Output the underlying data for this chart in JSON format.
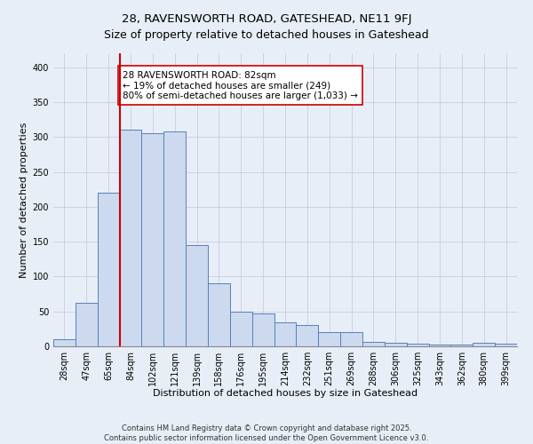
{
  "title1": "28, RAVENSWORTH ROAD, GATESHEAD, NE11 9FJ",
  "title2": "Size of property relative to detached houses in Gateshead",
  "xlabel": "Distribution of detached houses by size in Gateshead",
  "ylabel": "Number of detached properties",
  "categories": [
    "28sqm",
    "47sqm",
    "65sqm",
    "84sqm",
    "102sqm",
    "121sqm",
    "139sqm",
    "158sqm",
    "176sqm",
    "195sqm",
    "214sqm",
    "232sqm",
    "251sqm",
    "269sqm",
    "288sqm",
    "306sqm",
    "325sqm",
    "343sqm",
    "362sqm",
    "380sqm",
    "399sqm"
  ],
  "values": [
    10,
    62,
    220,
    310,
    305,
    308,
    145,
    90,
    50,
    47,
    35,
    30,
    20,
    20,
    7,
    5,
    4,
    3,
    2,
    5,
    4
  ],
  "bar_color": "#ccd9ee",
  "bar_edge_color": "#5580bb",
  "vline_x": 2.5,
  "vline_color": "#cc0000",
  "annotation_text": "28 RAVENSWORTH ROAD: 82sqm\n← 19% of detached houses are smaller (249)\n80% of semi-detached houses are larger (1,033) →",
  "annotation_box_color": "#ffffff",
  "annotation_box_edge_color": "#cc0000",
  "footer1": "Contains HM Land Registry data © Crown copyright and database right 2025.",
  "footer2": "Contains public sector information licensed under the Open Government Licence v3.0.",
  "background_color": "#e8eef8",
  "axes_background_color": "#e8eef8",
  "ylim": [
    0,
    420
  ],
  "yticks": [
    0,
    50,
    100,
    150,
    200,
    250,
    300,
    350,
    400
  ],
  "grid_color": "#c0c8d8",
  "title1_fontsize": 9.5,
  "title2_fontsize": 9,
  "xlabel_fontsize": 8,
  "ylabel_fontsize": 8,
  "tick_fontsize": 7,
  "annotation_fontsize": 7.5
}
